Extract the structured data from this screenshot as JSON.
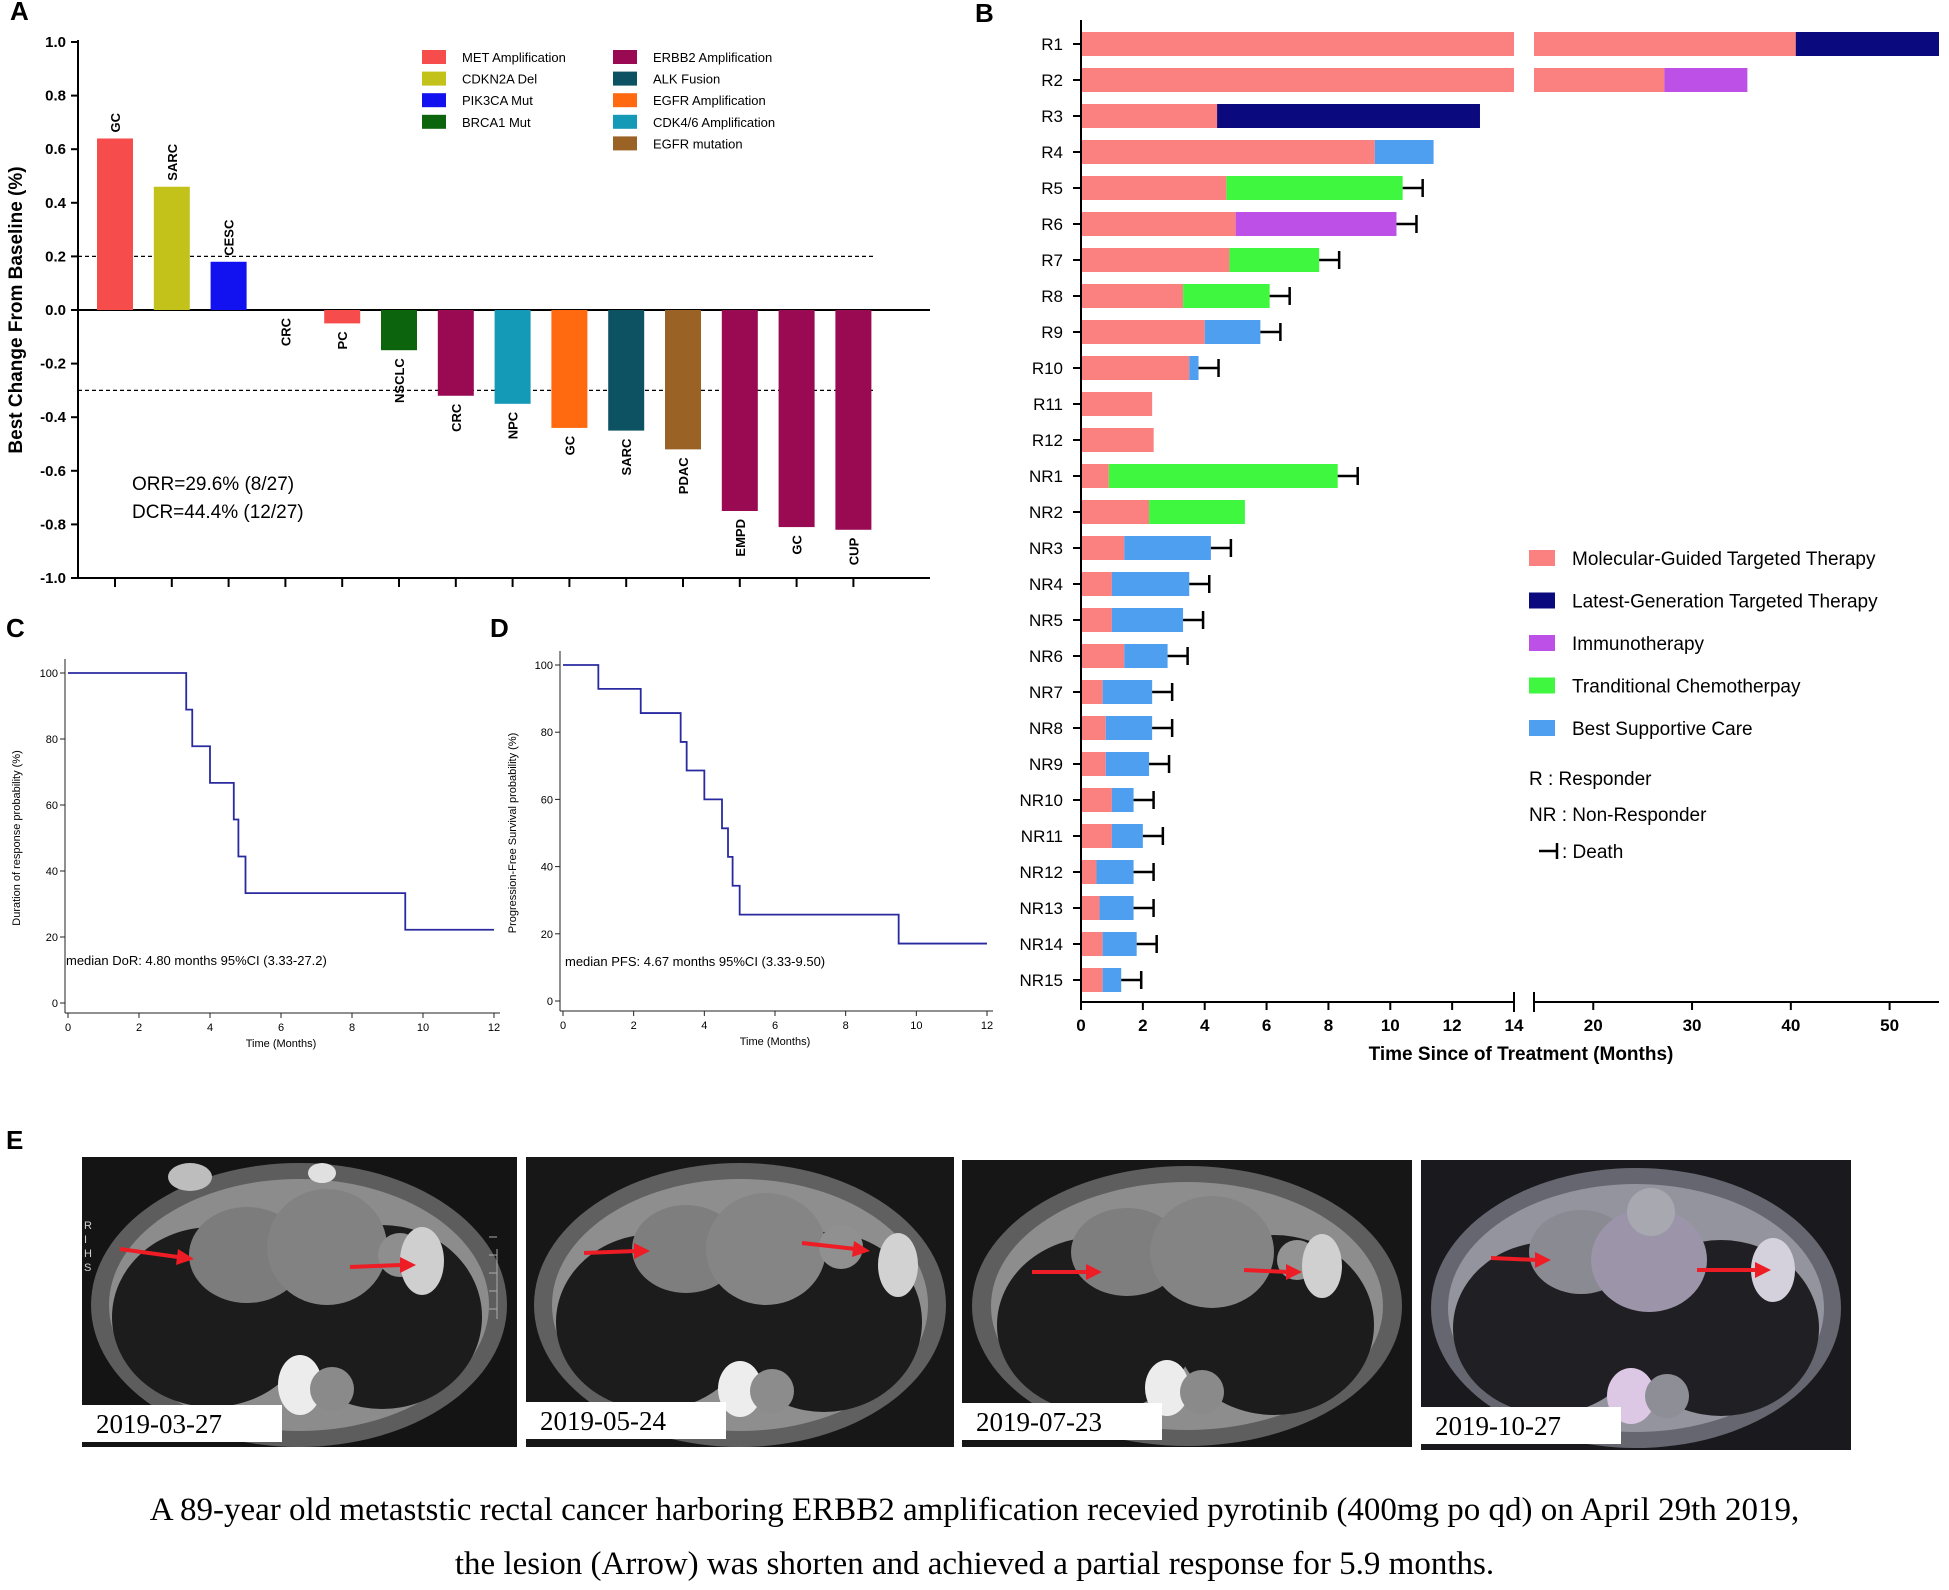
{
  "panels": {
    "a": {
      "letter": "A",
      "stats": [
        "ORR=29.6% (8/27)",
        "DCR=44.4% (12/27)"
      ],
      "legend": [
        {
          "label": "MET Amplification",
          "color": "#f74c4c"
        },
        {
          "label": "CDKN2A Del",
          "color": "#c3c21a"
        },
        {
          "label": "PIK3CA Mut",
          "color": "#1212f0"
        },
        {
          "label": "BRCA1 Mut",
          "color": "#0c640c"
        },
        {
          "label": "ERBB2 Amplification",
          "color": "#990a53"
        },
        {
          "label": "ALK Fusion",
          "color": "#0c5262"
        },
        {
          "label": "EGFR Amplification",
          "color": "#ff6a10"
        },
        {
          "label": "CDK4/6 Amplification",
          "color": "#1499b6"
        },
        {
          "label": "EGFR mutation",
          "color": "#9a6224"
        }
      ]
    },
    "b": {
      "letter": "B"
    },
    "c": {
      "letter": "C"
    },
    "d": {
      "letter": "D"
    },
    "e": {
      "letter": "E",
      "scans": [
        {
          "date": "2019-03-27"
        },
        {
          "date": "2019-05-24"
        },
        {
          "date": "2019-07-23"
        },
        {
          "date": "2019-10-27"
        }
      ],
      "scan_marks": [
        "R",
        "I",
        "H",
        "S"
      ],
      "caption_line1": "A 89-year old  metaststic rectal cancer harboring ERBB2 amplification recevied pyrotinib (400mg po qd) on April 29th 2019,",
      "caption_line2": "the lesion (Arrow) was shorten  and achieved a partial response for 5.9 months."
    }
  },
  "chart_data": [
    {
      "panel": "A",
      "type": "bar",
      "ylabel": "Best Change From Baseline (%)",
      "xlabel": "",
      "ylim": [
        -1.0,
        1.0
      ],
      "yticks": [
        "1.0",
        "0.8",
        "0.6",
        "0.4",
        "0.2",
        "0.0",
        "-0.2",
        "-0.4",
        "-0.6",
        "-0.8",
        "-1.0"
      ],
      "reference_lines": [
        0.2,
        -0.3
      ],
      "categories": [
        "GC",
        "SARC",
        "CESC",
        "CRC",
        "PC",
        "NSCLC",
        "CRC",
        "NPC",
        "GC",
        "SARC",
        "PDAC",
        "EMPD",
        "GC",
        "CUP"
      ],
      "values": [
        0.64,
        0.46,
        0.18,
        0.0,
        -0.05,
        -0.15,
        -0.32,
        -0.35,
        -0.44,
        -0.45,
        -0.52,
        -0.75,
        -0.81,
        -0.82
      ],
      "bar_alterations": [
        "MET Amplification",
        "CDKN2A Del",
        "PIK3CA Mut",
        "",
        "MET Amplification",
        "BRCA1 Mut",
        "ERBB2 Amplification",
        "CDK4/6 Amplification",
        "EGFR Amplification",
        "ALK Fusion",
        "EGFR mutation",
        "ERBB2 Amplification",
        "ERBB2 Amplification",
        "ERBB2 Amplification"
      ]
    },
    {
      "panel": "B",
      "type": "bar",
      "orientation": "horizontal-stacked",
      "xlabel": "Time Since of Treatment (Months)",
      "xlim_segment1": [
        0,
        14
      ],
      "xlim_segment2": [
        14,
        55
      ],
      "xticks_segment1": [
        "0",
        "2",
        "4",
        "6",
        "8",
        "10",
        "12",
        "14"
      ],
      "xticks_segment2": [
        "20",
        "30",
        "40",
        "50"
      ],
      "legend": [
        {
          "label": "Molecular-Guided Targeted Therapy",
          "color": "#fb8080"
        },
        {
          "label": "Latest-Generation Targeted Therapy",
          "color": "#0a0a7e"
        },
        {
          "label": "Immunotherapy",
          "color": "#bd50e6"
        },
        {
          "label": "Tranditional Chemotherpay",
          "color": "#40f740"
        },
        {
          "label": "Best Supportive Care",
          "color": "#4f9ff0"
        }
      ],
      "legend_notes": [
        "R : Responder",
        "NR : Non-Responder",
        ": Death"
      ],
      "patients": [
        {
          "id": "R1",
          "segments": [
            {
              "therapy": "Molecular-Guided Targeted Therapy",
              "months": 40.5
            },
            {
              "therapy": "Latest-Generation Targeted Therapy",
              "months": 14.5
            }
          ],
          "death": false
        },
        {
          "id": "R2",
          "segments": [
            {
              "therapy": "Molecular-Guided Targeted Therapy",
              "months": 27.2
            },
            {
              "therapy": "Immunotherapy",
              "months": 8.4
            }
          ],
          "death": false
        },
        {
          "id": "R3",
          "segments": [
            {
              "therapy": "Molecular-Guided Targeted Therapy",
              "months": 4.4
            },
            {
              "therapy": "Latest-Generation Targeted Therapy",
              "months": 8.5
            }
          ],
          "death": false
        },
        {
          "id": "R4",
          "segments": [
            {
              "therapy": "Molecular-Guided Targeted Therapy",
              "months": 9.5
            },
            {
              "therapy": "Best Supportive Care",
              "months": 1.9
            }
          ],
          "death": false
        },
        {
          "id": "R5",
          "segments": [
            {
              "therapy": "Molecular-Guided Targeted Therapy",
              "months": 4.7
            },
            {
              "therapy": "Tranditional Chemotherpay",
              "months": 5.7
            }
          ],
          "death": true
        },
        {
          "id": "R6",
          "segments": [
            {
              "therapy": "Molecular-Guided Targeted Therapy",
              "months": 5.0
            },
            {
              "therapy": "Immunotherapy",
              "months": 5.2
            }
          ],
          "death": true
        },
        {
          "id": "R7",
          "segments": [
            {
              "therapy": "Molecular-Guided Targeted Therapy",
              "months": 4.8
            },
            {
              "therapy": "Tranditional Chemotherpay",
              "months": 2.9
            }
          ],
          "death": true
        },
        {
          "id": "R8",
          "segments": [
            {
              "therapy": "Molecular-Guided Targeted Therapy",
              "months": 3.3
            },
            {
              "therapy": "Tranditional Chemotherpay",
              "months": 2.8
            }
          ],
          "death": true
        },
        {
          "id": "R9",
          "segments": [
            {
              "therapy": "Molecular-Guided Targeted Therapy",
              "months": 4.0
            },
            {
              "therapy": "Best Supportive Care",
              "months": 1.8
            }
          ],
          "death": true
        },
        {
          "id": "R10",
          "segments": [
            {
              "therapy": "Molecular-Guided Targeted Therapy",
              "months": 3.5
            },
            {
              "therapy": "Best Supportive Care",
              "months": 0.3
            }
          ],
          "death": true
        },
        {
          "id": "R11",
          "segments": [
            {
              "therapy": "Molecular-Guided Targeted Therapy",
              "months": 2.3
            }
          ],
          "death": false
        },
        {
          "id": "R12",
          "segments": [
            {
              "therapy": "Molecular-Guided Targeted Therapy",
              "months": 2.35
            }
          ],
          "death": false
        },
        {
          "id": "NR1",
          "segments": [
            {
              "therapy": "Molecular-Guided Targeted Therapy",
              "months": 0.9
            },
            {
              "therapy": "Tranditional Chemotherpay",
              "months": 7.4
            }
          ],
          "death": true
        },
        {
          "id": "NR2",
          "segments": [
            {
              "therapy": "Molecular-Guided Targeted Therapy",
              "months": 2.2
            },
            {
              "therapy": "Tranditional Chemotherpay",
              "months": 3.1
            }
          ],
          "death": false
        },
        {
          "id": "NR3",
          "segments": [
            {
              "therapy": "Molecular-Guided Targeted Therapy",
              "months": 1.4
            },
            {
              "therapy": "Best Supportive Care",
              "months": 2.8
            }
          ],
          "death": true
        },
        {
          "id": "NR4",
          "segments": [
            {
              "therapy": "Molecular-Guided Targeted Therapy",
              "months": 1.0
            },
            {
              "therapy": "Best Supportive Care",
              "months": 2.5
            }
          ],
          "death": true
        },
        {
          "id": "NR5",
          "segments": [
            {
              "therapy": "Molecular-Guided Targeted Therapy",
              "months": 1.0
            },
            {
              "therapy": "Best Supportive Care",
              "months": 2.3
            }
          ],
          "death": true
        },
        {
          "id": "NR6",
          "segments": [
            {
              "therapy": "Molecular-Guided Targeted Therapy",
              "months": 1.4
            },
            {
              "therapy": "Best Supportive Care",
              "months": 1.4
            }
          ],
          "death": true
        },
        {
          "id": "NR7",
          "segments": [
            {
              "therapy": "Molecular-Guided Targeted Therapy",
              "months": 0.7
            },
            {
              "therapy": "Best Supportive Care",
              "months": 1.6
            }
          ],
          "death": true
        },
        {
          "id": "NR8",
          "segments": [
            {
              "therapy": "Molecular-Guided Targeted Therapy",
              "months": 0.8
            },
            {
              "therapy": "Best Supportive Care",
              "months": 1.5
            }
          ],
          "death": true
        },
        {
          "id": "NR9",
          "segments": [
            {
              "therapy": "Molecular-Guided Targeted Therapy",
              "months": 0.8
            },
            {
              "therapy": "Best Supportive Care",
              "months": 1.4
            }
          ],
          "death": true
        },
        {
          "id": "NR10",
          "segments": [
            {
              "therapy": "Molecular-Guided Targeted Therapy",
              "months": 1.0
            },
            {
              "therapy": "Best Supportive Care",
              "months": 0.7
            }
          ],
          "death": true
        },
        {
          "id": "NR11",
          "segments": [
            {
              "therapy": "Molecular-Guided Targeted Therapy",
              "months": 1.0
            },
            {
              "therapy": "Best Supportive Care",
              "months": 1.0
            }
          ],
          "death": true
        },
        {
          "id": "NR12",
          "segments": [
            {
              "therapy": "Molecular-Guided Targeted Therapy",
              "months": 0.5
            },
            {
              "therapy": "Best Supportive Care",
              "months": 1.2
            }
          ],
          "death": true
        },
        {
          "id": "NR13",
          "segments": [
            {
              "therapy": "Molecular-Guided Targeted Therapy",
              "months": 0.6
            },
            {
              "therapy": "Best Supportive Care",
              "months": 1.1
            }
          ],
          "death": true
        },
        {
          "id": "NR14",
          "segments": [
            {
              "therapy": "Molecular-Guided Targeted Therapy",
              "months": 0.7
            },
            {
              "therapy": "Best Supportive Care",
              "months": 1.1
            }
          ],
          "death": true
        },
        {
          "id": "NR15",
          "segments": [
            {
              "therapy": "Molecular-Guided Targeted Therapy",
              "months": 0.7
            },
            {
              "therapy": "Best Supportive Care",
              "months": 0.6
            }
          ],
          "death": true
        }
      ]
    },
    {
      "panel": "C",
      "type": "line",
      "step": true,
      "xlabel": "Time (Months)",
      "ylabel": "Duration of response probability (%)",
      "xlim": [
        0,
        12
      ],
      "ylim": [
        0,
        100
      ],
      "xticks": [
        "0",
        "2",
        "4",
        "6",
        "8",
        "10",
        "12"
      ],
      "yticks": [
        "0",
        "20",
        "40",
        "60",
        "80",
        "100"
      ],
      "annotation": "median DoR: 4.80 months 95%CI (3.33-27.2)",
      "series": [
        {
          "name": "DoR",
          "x": [
            0,
            3.33,
            3.5,
            4.0,
            4.67,
            4.8,
            5.0,
            9.5,
            12
          ],
          "y": [
            100,
            88.9,
            77.8,
            66.7,
            55.6,
            44.4,
            33.3,
            22.2,
            22.2
          ]
        }
      ]
    },
    {
      "panel": "D",
      "type": "line",
      "step": true,
      "xlabel": "Time (Months)",
      "ylabel": "Progression-Free Survival probability (%)",
      "xlim": [
        0,
        12
      ],
      "ylim": [
        0,
        100
      ],
      "xticks": [
        "0",
        "2",
        "4",
        "6",
        "8",
        "10",
        "12"
      ],
      "yticks": [
        "0",
        "20",
        "40",
        "60",
        "80",
        "100"
      ],
      "annotation": "median PFS: 4.67 months 95%CI (3.33-9.50)",
      "series": [
        {
          "name": "PFS",
          "x": [
            0,
            1.0,
            2.2,
            3.33,
            3.5,
            4.0,
            4.5,
            4.67,
            4.8,
            5.0,
            9.5,
            12
          ],
          "y": [
            100,
            92.9,
            85.7,
            77.1,
            68.6,
            60.0,
            51.4,
            42.9,
            34.3,
            25.7,
            17.1,
            17.1
          ]
        }
      ]
    }
  ]
}
